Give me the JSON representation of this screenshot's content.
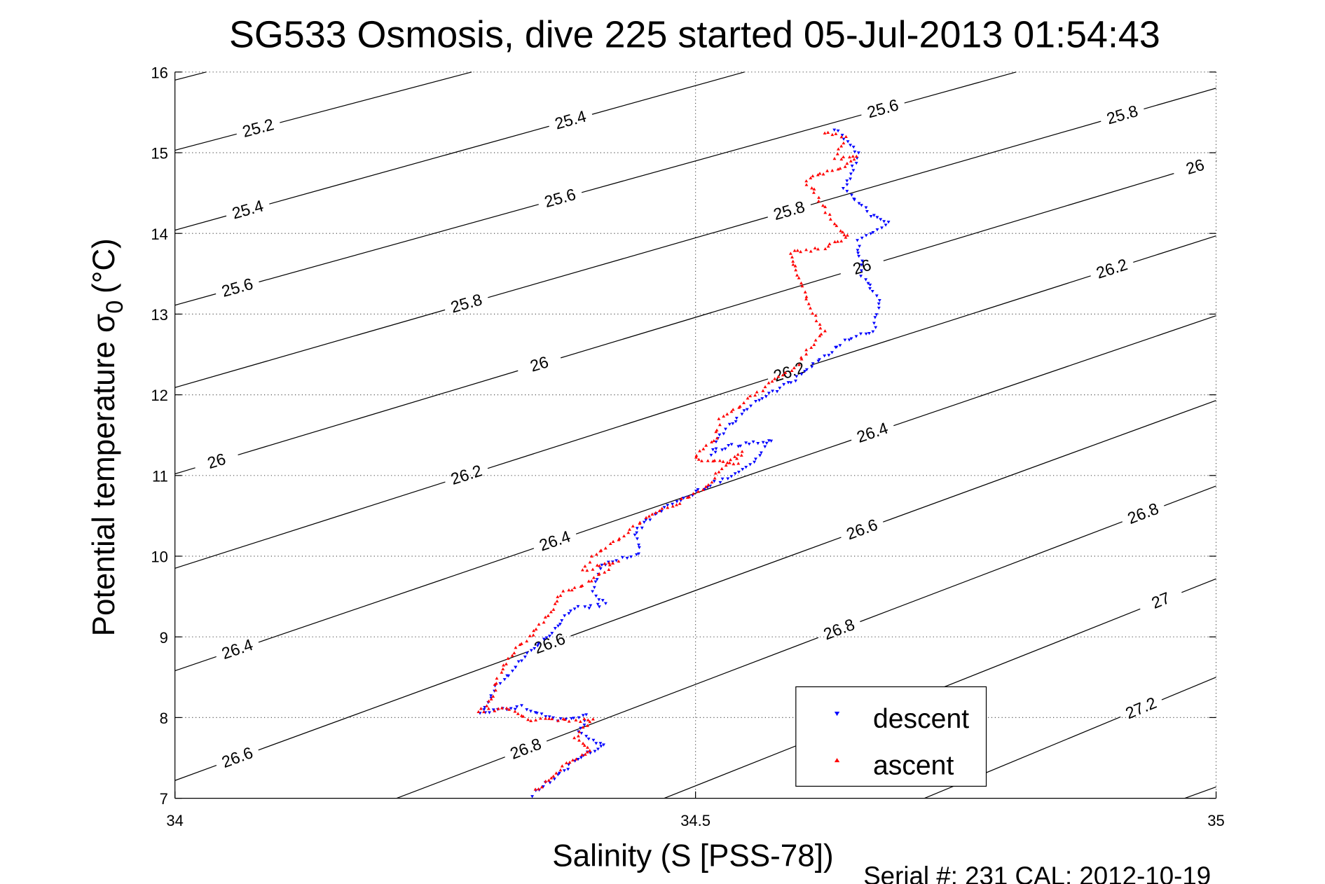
{
  "chart_data": {
    "type": "scatter",
    "title": "SG533 Osmosis, dive 225 started 05-Jul-2013 01:54:43",
    "xlabel": "Salinity (S [PSS-78])",
    "ylabel_main": "Potential temperature σ",
    "ylabel_sub": "0",
    "ylabel_unit": "(°C)",
    "footer": "Serial #: 231  CAL: 2012-10-19",
    "xlim": [
      34,
      35
    ],
    "ylim": [
      7,
      16
    ],
    "xticks": [
      "34",
      "34.5",
      "35"
    ],
    "xtick_values": [
      34,
      34.5,
      35
    ],
    "yticks": [
      "7",
      "8",
      "9",
      "10",
      "11",
      "12",
      "13",
      "14",
      "15",
      "16"
    ],
    "ytick_values": [
      7,
      8,
      9,
      10,
      11,
      12,
      13,
      14,
      15,
      16
    ],
    "grid": true,
    "legend": {
      "placement": "bottom-right",
      "entries": [
        "descent",
        "ascent"
      ]
    },
    "colors": {
      "descent": "#0000ff",
      "ascent": "#ff0000",
      "contour": "#000000"
    },
    "contours": [
      {
        "level": "25",
        "p1": [
          34,
          15.9
        ],
        "p2": [
          34.03,
          16
        ]
      },
      {
        "level": "25.2",
        "p1": [
          34,
          15.03
        ],
        "p2": [
          34.285,
          16
        ]
      },
      {
        "level": "25.4",
        "p1": [
          34,
          14.04
        ],
        "p2": [
          34.547,
          16
        ]
      },
      {
        "level": "25.6",
        "p1": [
          34,
          13.11
        ],
        "p2": [
          34.808,
          16
        ]
      },
      {
        "level": "25.8",
        "p1": [
          34,
          12.09
        ],
        "p2": [
          35,
          15.8
        ]
      },
      {
        "level": "26",
        "p1": [
          34,
          11.02
        ],
        "p2": [
          35,
          14.9
        ]
      },
      {
        "level": "26.2",
        "p1": [
          34,
          9.85
        ],
        "p2": [
          35,
          13.97
        ]
      },
      {
        "level": "26.4",
        "p1": [
          34,
          8.58
        ],
        "p2": [
          35,
          12.98
        ]
      },
      {
        "level": "26.6",
        "p1": [
          34,
          7.22
        ],
        "p2": [
          35,
          11.93
        ]
      },
      {
        "level": "26.8",
        "p1": [
          34.213,
          7
        ],
        "p2": [
          35,
          10.87
        ]
      },
      {
        "level": "27",
        "p1": [
          34.47,
          7
        ],
        "p2": [
          35,
          9.72
        ]
      },
      {
        "level": "27.2",
        "p1": [
          34.72,
          7
        ],
        "p2": [
          35,
          8.5
        ]
      },
      {
        "level": "27.4",
        "p1": [
          34.97,
          7
        ],
        "p2": [
          35,
          7.14
        ]
      }
    ],
    "series": [
      {
        "name": "descent",
        "marker": "triangle-down",
        "points": [
          [
            34.635,
            15.3
          ],
          [
            34.656,
            14.98
          ],
          [
            34.643,
            14.55
          ],
          [
            34.668,
            14.23
          ],
          [
            34.685,
            14.13
          ],
          [
            34.656,
            13.91
          ],
          [
            34.66,
            13.49
          ],
          [
            34.676,
            13.17
          ],
          [
            34.672,
            12.8
          ],
          [
            34.647,
            12.69
          ],
          [
            34.623,
            12.48
          ],
          [
            34.598,
            12.22
          ],
          [
            34.557,
            11.9
          ],
          [
            34.528,
            11.58
          ],
          [
            34.516,
            11.26
          ],
          [
            34.532,
            11.37
          ],
          [
            34.573,
            11.42
          ],
          [
            34.549,
            11.1
          ],
          [
            34.507,
            10.84
          ],
          [
            34.466,
            10.57
          ],
          [
            34.442,
            10.3
          ],
          [
            34.446,
            10.04
          ],
          [
            34.409,
            9.88
          ],
          [
            34.4,
            9.56
          ],
          [
            34.413,
            9.4
          ],
          [
            34.384,
            9.35
          ],
          [
            34.359,
            9.03
          ],
          [
            34.334,
            8.71
          ],
          [
            34.318,
            8.5
          ],
          [
            34.306,
            8.34
          ],
          [
            34.301,
            8.18
          ],
          [
            34.293,
            8.07
          ],
          [
            34.334,
            8.13
          ],
          [
            34.367,
            7.97
          ],
          [
            34.396,
            8.02
          ],
          [
            34.388,
            7.81
          ],
          [
            34.413,
            7.65
          ],
          [
            34.392,
            7.54
          ],
          [
            34.367,
            7.28
          ],
          [
            34.339,
            7.01
          ]
        ]
      },
      {
        "name": "ascent",
        "marker": "triangle-up",
        "points": [
          [
            34.623,
            15.25
          ],
          [
            34.643,
            15.19
          ],
          [
            34.635,
            14.93
          ],
          [
            34.656,
            14.95
          ],
          [
            34.639,
            14.82
          ],
          [
            34.606,
            14.66
          ],
          [
            34.619,
            14.4
          ],
          [
            34.635,
            14.08
          ],
          [
            34.647,
            13.97
          ],
          [
            34.623,
            13.81
          ],
          [
            34.59,
            13.76
          ],
          [
            34.602,
            13.39
          ],
          [
            34.61,
            13.07
          ],
          [
            34.623,
            12.8
          ],
          [
            34.598,
            12.38
          ],
          [
            34.557,
            12.0
          ],
          [
            34.524,
            11.69
          ],
          [
            34.52,
            11.47
          ],
          [
            34.499,
            11.21
          ],
          [
            34.54,
            11.15
          ],
          [
            34.544,
            11.31
          ],
          [
            34.503,
            10.78
          ],
          [
            34.458,
            10.52
          ],
          [
            34.425,
            10.2
          ],
          [
            34.4,
            9.98
          ],
          [
            34.392,
            9.83
          ],
          [
            34.425,
            9.93
          ],
          [
            34.396,
            9.67
          ],
          [
            34.367,
            9.51
          ],
          [
            34.363,
            9.35
          ],
          [
            34.343,
            9.03
          ],
          [
            34.326,
            8.82
          ],
          [
            34.31,
            8.5
          ],
          [
            34.306,
            8.28
          ],
          [
            34.293,
            8.07
          ],
          [
            34.318,
            8.13
          ],
          [
            34.343,
            7.97
          ],
          [
            34.376,
            7.97
          ],
          [
            34.4,
            7.97
          ],
          [
            34.384,
            7.75
          ],
          [
            34.4,
            7.59
          ],
          [
            34.376,
            7.43
          ],
          [
            34.359,
            7.22
          ],
          [
            34.343,
            7.06
          ]
        ]
      }
    ]
  }
}
